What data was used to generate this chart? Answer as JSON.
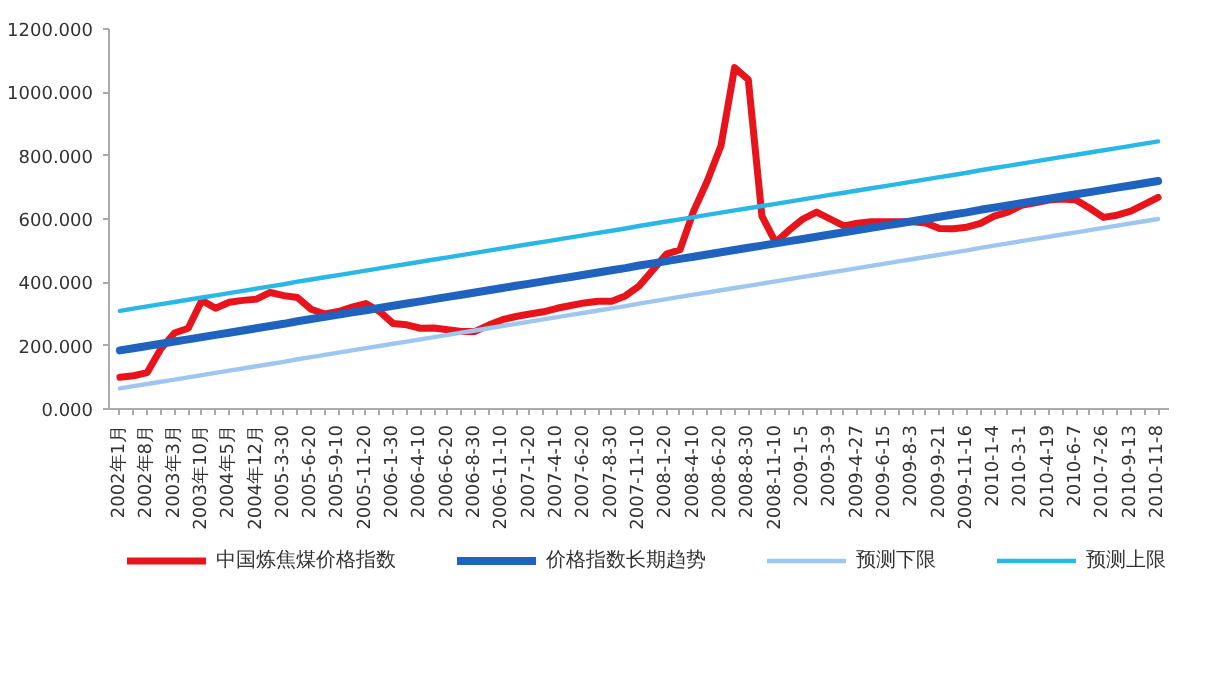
{
  "chart_data": {
    "type": "line",
    "categories": [
      "2002年1月",
      null,
      "2002年8月",
      null,
      "2003年3月",
      null,
      "2003年10月",
      null,
      "2004年5月",
      null,
      "2004年12月",
      null,
      "2005-3-30",
      null,
      "2005-6-20",
      null,
      "2005-9-10",
      null,
      "2005-11-20",
      null,
      "2006-1-30",
      null,
      "2006-4-10",
      null,
      "2006-6-20",
      null,
      "2006-8-30",
      null,
      "2006-11-10",
      null,
      "2007-1-20",
      null,
      "2007-4-10",
      null,
      "2007-6-20",
      null,
      "2007-8-30",
      null,
      "2007-11-10",
      null,
      "2008-1-20",
      null,
      "2008-4-10",
      null,
      "2008-6-20",
      null,
      "2008-8-30",
      null,
      "2008-11-10",
      null,
      "2009-1-5",
      null,
      "2009-3-9",
      null,
      "2009-4-27",
      null,
      "2009-6-15",
      null,
      "2009-8-3",
      null,
      "2009-9-21",
      null,
      "2009-11-16",
      null,
      "2010-1-4",
      null,
      "2010-3-1",
      null,
      "2010-4-19",
      null,
      "2010-6-7",
      null,
      "2010-7-26",
      null,
      "2010-9-13",
      null,
      "2010-11-8"
    ],
    "series": [
      {
        "name": "中国炼焦煤价格指数",
        "color": "#e8141b",
        "values": [
          100,
          105,
          115,
          190,
          240,
          255,
          343,
          318,
          337,
          343,
          347,
          368,
          358,
          352,
          315,
          300,
          308,
          322,
          333,
          308,
          270,
          266,
          255,
          256,
          250,
          245,
          245,
          265,
          282,
          292,
          300,
          307,
          318,
          327,
          335,
          340,
          340,
          357,
          388,
          438,
          489,
          503,
          625,
          720,
          831,
          1078,
          1040,
          609,
          526,
          565,
          600,
          622,
          600,
          578,
          587,
          591,
          591,
          591,
          591,
          587,
          570,
          569,
          574,
          586,
          609,
          622,
          643,
          651,
          660,
          663,
          660,
          634,
          605,
          612,
          625,
          646,
          668
        ]
      },
      {
        "name": "价格指数长期趋势",
        "color": "#1f63bf",
        "values": [
          185,
          192,
          199,
          206,
          213,
          220,
          227,
          234,
          241,
          248,
          255,
          262,
          269,
          277,
          284,
          291,
          298,
          305,
          312,
          319,
          326,
          333,
          340,
          347,
          354,
          361,
          368,
          375,
          382,
          389,
          396,
          403,
          410,
          417,
          424,
          431,
          438,
          445,
          453,
          460,
          467,
          474,
          481,
          488,
          495,
          502,
          509,
          516,
          523,
          530,
          537,
          544,
          551,
          558,
          565,
          572,
          579,
          586,
          593,
          600,
          607,
          614,
          621,
          629,
          636,
          643,
          650,
          657,
          664,
          671,
          678,
          685,
          692,
          699,
          706,
          713,
          720
        ]
      },
      {
        "name": "预测下限",
        "color": "#9ec6ef",
        "values": [
          65,
          72,
          79,
          86,
          93,
          100,
          107,
          114,
          121,
          128,
          135,
          142,
          149,
          157,
          164,
          171,
          178,
          185,
          192,
          199,
          206,
          213,
          220,
          227,
          234,
          241,
          248,
          255,
          262,
          269,
          276,
          283,
          290,
          297,
          304,
          311,
          318,
          325,
          333,
          340,
          347,
          354,
          361,
          368,
          375,
          382,
          389,
          396,
          403,
          410,
          417,
          424,
          431,
          438,
          445,
          452,
          459,
          466,
          473,
          480,
          487,
          494,
          501,
          509,
          516,
          523,
          530,
          537,
          544,
          551,
          558,
          565,
          572,
          579,
          586,
          593,
          600
        ]
      },
      {
        "name": "预测上限",
        "color": "#29b8e6",
        "values": [
          310,
          317,
          324,
          331,
          338,
          345,
          352,
          359,
          366,
          373,
          380,
          387,
          394,
          402,
          409,
          416,
          423,
          430,
          437,
          444,
          451,
          458,
          465,
          472,
          479,
          486,
          493,
          500,
          507,
          514,
          521,
          528,
          535,
          542,
          549,
          556,
          563,
          570,
          578,
          585,
          592,
          599,
          606,
          613,
          620,
          627,
          634,
          641,
          648,
          655,
          662,
          669,
          676,
          683,
          690,
          697,
          704,
          711,
          718,
          725,
          732,
          739,
          746,
          754,
          761,
          768,
          775,
          782,
          789,
          796,
          803,
          810,
          817,
          824,
          831,
          838,
          845
        ]
      }
    ],
    "ylim": [
      0,
      1200
    ],
    "yticks": [
      {
        "value": 0,
        "label": "0.000"
      },
      {
        "value": 200,
        "label": "200.000"
      },
      {
        "value": 400,
        "label": "400.000"
      },
      {
        "value": 600,
        "label": "600.000"
      },
      {
        "value": 800,
        "label": "800.000"
      },
      {
        "value": 1000,
        "label": "1000.000"
      },
      {
        "value": 1200,
        "label": "1200.000"
      }
    ],
    "grid": false,
    "legend": "bottom"
  }
}
